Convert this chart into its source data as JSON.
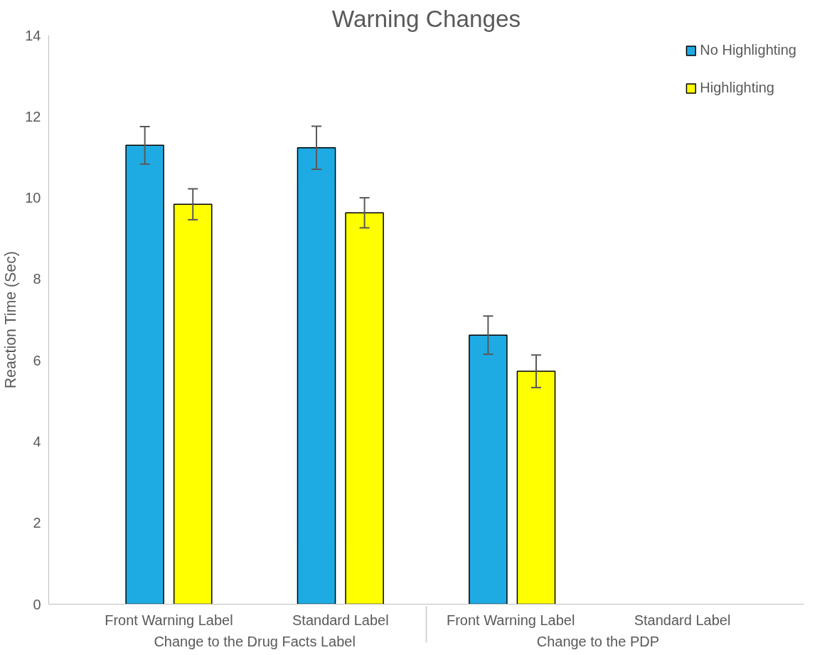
{
  "chart_data": {
    "type": "bar",
    "title": "Warning Changes",
    "ylabel": "Reaction Time (Sec)",
    "categories": [
      "Front Warning Label",
      "Standard Label",
      "Front Warning Label",
      "Standard Label"
    ],
    "annotations": [
      "Change to the Drug Facts Label",
      "Change to the PDP"
    ],
    "series": [
      {
        "name": "No Highlighting",
        "color": "#1eabe3",
        "values": [
          11.29,
          11.23,
          6.62,
          null
        ],
        "errors": [
          0.46,
          0.53,
          0.47,
          null
        ]
      },
      {
        "name": "Highlighting",
        "color": "#ffff00",
        "values": [
          9.84,
          9.63,
          5.73,
          null
        ],
        "errors": [
          0.38,
          0.37,
          0.4,
          null
        ]
      }
    ],
    "ylim": [
      0,
      14
    ],
    "yticks": [
      0,
      2,
      4,
      6,
      8,
      10,
      12,
      14
    ],
    "grid": false,
    "legend": "top right"
  }
}
